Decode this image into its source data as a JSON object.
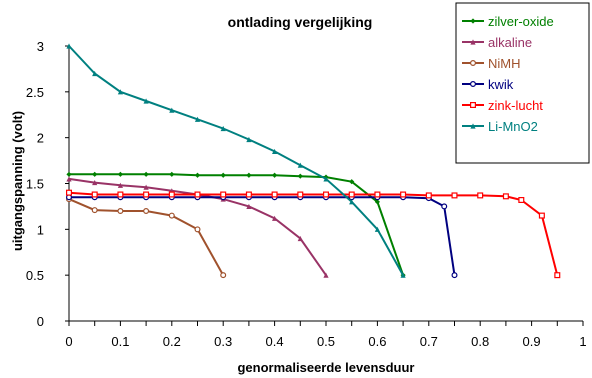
{
  "chart_data": {
    "type": "line",
    "title": "ontlading vergelijking",
    "xlabel": "genormaliseerde levensduur",
    "ylabel": "uitgangspanning   (volt)",
    "xlim": [
      0,
      1
    ],
    "ylim": [
      0,
      3
    ],
    "x_ticks": [
      "0",
      "0.1",
      "0.2",
      "0.3",
      "0.4",
      "0.5",
      "0.6",
      "0.7",
      "0.8",
      "0.9",
      "1"
    ],
    "y_ticks": [
      "0",
      "0.5",
      "1",
      "1.5",
      "2",
      "2.5",
      "3"
    ],
    "grid": false,
    "legend_position": "top-right",
    "series": [
      {
        "name": "zilver-oxide",
        "color": "#008000",
        "marker": "diamond",
        "points": [
          [
            0,
            1.6
          ],
          [
            0.05,
            1.6
          ],
          [
            0.1,
            1.6
          ],
          [
            0.15,
            1.6
          ],
          [
            0.2,
            1.6
          ],
          [
            0.25,
            1.59
          ],
          [
            0.3,
            1.59
          ],
          [
            0.35,
            1.59
          ],
          [
            0.4,
            1.59
          ],
          [
            0.45,
            1.58
          ],
          [
            0.5,
            1.57
          ],
          [
            0.55,
            1.52
          ],
          [
            0.6,
            1.3
          ],
          [
            0.65,
            0.5
          ]
        ]
      },
      {
        "name": "alkaline",
        "color": "#993366",
        "marker": "triangle",
        "points": [
          [
            0,
            1.55
          ],
          [
            0.05,
            1.51
          ],
          [
            0.1,
            1.48
          ],
          [
            0.15,
            1.46
          ],
          [
            0.2,
            1.42
          ],
          [
            0.25,
            1.38
          ],
          [
            0.3,
            1.33
          ],
          [
            0.35,
            1.25
          ],
          [
            0.4,
            1.12
          ],
          [
            0.45,
            0.9
          ],
          [
            0.5,
            0.5
          ]
        ]
      },
      {
        "name": "NiMH",
        "color": "#A0522D",
        "marker": "circle",
        "points": [
          [
            0,
            1.33
          ],
          [
            0.05,
            1.21
          ],
          [
            0.1,
            1.2
          ],
          [
            0.15,
            1.2
          ],
          [
            0.2,
            1.15
          ],
          [
            0.25,
            1.0
          ],
          [
            0.3,
            0.5
          ]
        ]
      },
      {
        "name": "kwik",
        "color": "#000080",
        "marker": "circle",
        "points": [
          [
            0,
            1.35
          ],
          [
            0.05,
            1.35
          ],
          [
            0.1,
            1.35
          ],
          [
            0.15,
            1.35
          ],
          [
            0.2,
            1.35
          ],
          [
            0.25,
            1.35
          ],
          [
            0.3,
            1.35
          ],
          [
            0.35,
            1.35
          ],
          [
            0.4,
            1.35
          ],
          [
            0.45,
            1.35
          ],
          [
            0.5,
            1.35
          ],
          [
            0.55,
            1.35
          ],
          [
            0.6,
            1.35
          ],
          [
            0.65,
            1.35
          ],
          [
            0.7,
            1.34
          ],
          [
            0.73,
            1.25
          ],
          [
            0.75,
            0.5
          ]
        ]
      },
      {
        "name": "zink-lucht",
        "color": "#FF0000",
        "marker": "square",
        "points": [
          [
            0,
            1.4
          ],
          [
            0.05,
            1.38
          ],
          [
            0.1,
            1.38
          ],
          [
            0.15,
            1.38
          ],
          [
            0.2,
            1.38
          ],
          [
            0.25,
            1.38
          ],
          [
            0.3,
            1.38
          ],
          [
            0.35,
            1.38
          ],
          [
            0.4,
            1.38
          ],
          [
            0.45,
            1.38
          ],
          [
            0.5,
            1.38
          ],
          [
            0.55,
            1.38
          ],
          [
            0.6,
            1.38
          ],
          [
            0.65,
            1.38
          ],
          [
            0.7,
            1.37
          ],
          [
            0.75,
            1.37
          ],
          [
            0.8,
            1.37
          ],
          [
            0.85,
            1.36
          ],
          [
            0.88,
            1.32
          ],
          [
            0.92,
            1.15
          ],
          [
            0.95,
            0.5
          ]
        ]
      },
      {
        "name": "Li-MnO2",
        "color": "#008080",
        "marker": "triangle",
        "points": [
          [
            0,
            3.0
          ],
          [
            0.05,
            2.7
          ],
          [
            0.1,
            2.5
          ],
          [
            0.15,
            2.4
          ],
          [
            0.2,
            2.3
          ],
          [
            0.25,
            2.2
          ],
          [
            0.3,
            2.1
          ],
          [
            0.35,
            1.98
          ],
          [
            0.4,
            1.85
          ],
          [
            0.45,
            1.7
          ],
          [
            0.5,
            1.55
          ],
          [
            0.55,
            1.3
          ],
          [
            0.6,
            1.0
          ],
          [
            0.65,
            0.5
          ]
        ]
      }
    ]
  }
}
